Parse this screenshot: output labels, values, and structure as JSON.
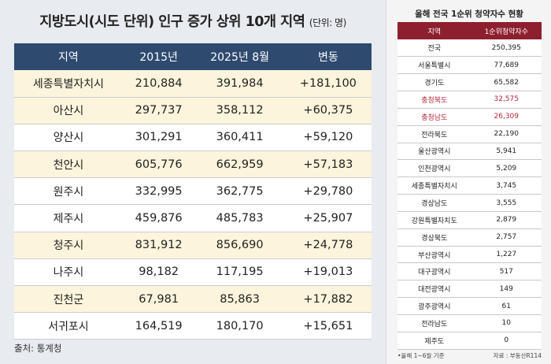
{
  "left": {
    "title": "지방도시(시도 단위) 인구 증가 상위 10개 지역",
    "unit": "(단위: 명)",
    "headers": [
      "지역",
      "2015년",
      "2025년 8월",
      "변동"
    ],
    "rows": [
      {
        "region": "세종특별자치시",
        "y2015": "210,884",
        "y2025": "391,984",
        "change": "+181,100",
        "highlight": true
      },
      {
        "region": "아산시",
        "y2015": "297,737",
        "y2025": "358,112",
        "change": "+60,375",
        "highlight": true
      },
      {
        "region": "양산시",
        "y2015": "301,291",
        "y2025": "360,411",
        "change": "+59,120",
        "highlight": false
      },
      {
        "region": "천안시",
        "y2015": "605,776",
        "y2025": "662,959",
        "change": "+57,183",
        "highlight": true
      },
      {
        "region": "원주시",
        "y2015": "332,995",
        "y2025": "362,775",
        "change": "+29,780",
        "highlight": false
      },
      {
        "region": "제주시",
        "y2015": "459,876",
        "y2025": "485,783",
        "change": "+25,907",
        "highlight": false
      },
      {
        "region": "청주시",
        "y2015": "831,912",
        "y2025": "856,690",
        "change": "+24,778",
        "highlight": true
      },
      {
        "region": "나주시",
        "y2015": "98,182",
        "y2025": "117,195",
        "change": "+19,013",
        "highlight": false
      },
      {
        "region": "진천군",
        "y2015": "67,981",
        "y2025": "85,863",
        "change": "+17,882",
        "highlight": true
      },
      {
        "region": "서귀포시",
        "y2015": "164,519",
        "y2025": "180,170",
        "change": "+15,651",
        "highlight": false
      }
    ],
    "source": "출처: 통계청"
  },
  "right": {
    "title": "올해 전국 1순위 청약자수 현황",
    "headers": [
      "지역",
      "1순위청약자수"
    ],
    "rows": [
      {
        "region": "전국",
        "count": "250,395",
        "red": false
      },
      {
        "region": "서울특별시",
        "count": "77,689",
        "red": false
      },
      {
        "region": "경기도",
        "count": "65,582",
        "red": false
      },
      {
        "region": "충청북도",
        "count": "32,575",
        "red": true
      },
      {
        "region": "충청남도",
        "count": "26,309",
        "red": true
      },
      {
        "region": "전라북도",
        "count": "22,190",
        "red": false
      },
      {
        "region": "울산광역시",
        "count": "5,941",
        "red": false
      },
      {
        "region": "인천광역시",
        "count": "5,209",
        "red": false
      },
      {
        "region": "세종특별자치시",
        "count": "3,745",
        "red": false
      },
      {
        "region": "경상남도",
        "count": "3,555",
        "red": false
      },
      {
        "region": "강원특별자치도",
        "count": "2,879",
        "red": false
      },
      {
        "region": "경상북도",
        "count": "2,757",
        "red": false
      },
      {
        "region": "부산광역시",
        "count": "1,227",
        "red": false
      },
      {
        "region": "대구광역시",
        "count": "517",
        "red": false
      },
      {
        "region": "대전광역시",
        "count": "149",
        "red": false
      },
      {
        "region": "광주광역시",
        "count": "61",
        "red": false
      },
      {
        "region": "전라남도",
        "count": "10",
        "red": false
      },
      {
        "region": "제주도",
        "count": "0",
        "red": false
      }
    ],
    "note": "•올해 1~6월 기준",
    "source": "자료 : 부동산R114"
  }
}
